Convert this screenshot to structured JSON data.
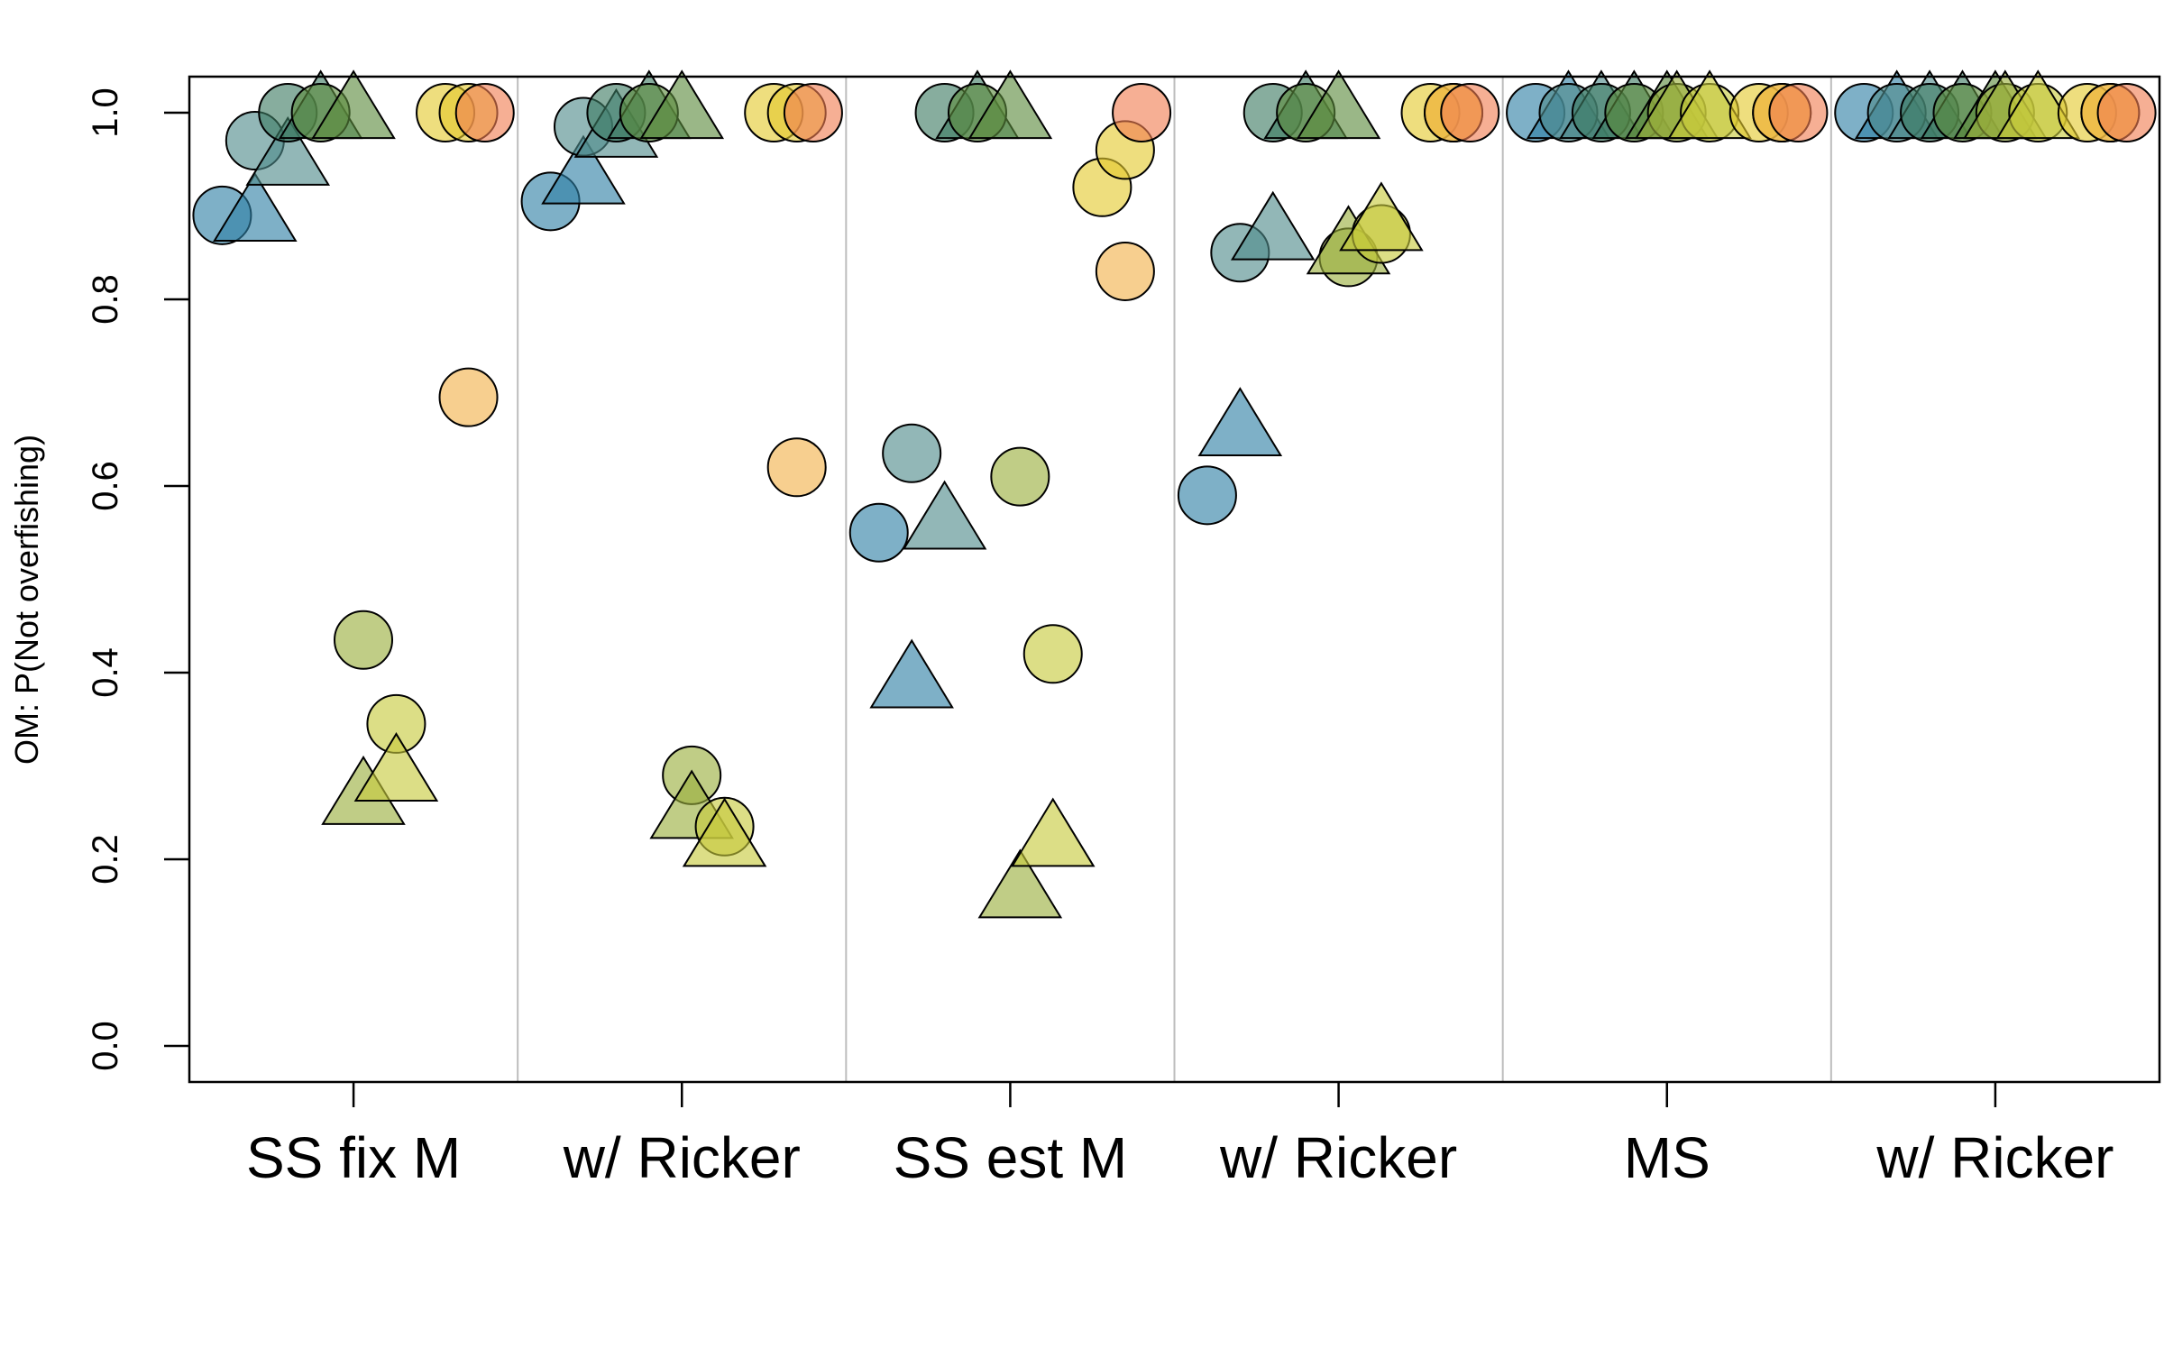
{
  "chart_data": {
    "type": "scatter",
    "title": "",
    "xlabel": "",
    "ylabel": "OM: P(Not overfishing)",
    "ylim": [
      0,
      1
    ],
    "yticks": [
      "0.0",
      "0.2",
      "0.4",
      "0.6",
      "0.8",
      "1.0"
    ],
    "categories": [
      "SS fix M",
      "w/ Ricker",
      "SS est M",
      "w/ Ricker",
      "MS",
      "w/ Ricker"
    ],
    "grid": false,
    "palette": [
      "#2F7FA5",
      "#4F8A8B",
      "#3E7A63",
      "#5C8B3E",
      "#9AAE3C",
      "#C7C93B",
      "#E3C92E",
      "#F2B24A",
      "#F07E52"
    ],
    "point_slots": [
      {
        "offset": -0.4,
        "shape": "circle",
        "color_index": 0
      },
      {
        "offset": -0.3,
        "shape": "triangle",
        "color_index": 0
      },
      {
        "offset": -0.3,
        "shape": "circle",
        "color_index": 1
      },
      {
        "offset": -0.2,
        "shape": "triangle",
        "color_index": 1
      },
      {
        "offset": -0.2,
        "shape": "circle",
        "color_index": 2
      },
      {
        "offset": -0.1,
        "shape": "triangle",
        "color_index": 2
      },
      {
        "offset": -0.1,
        "shape": "circle",
        "color_index": 3
      },
      {
        "offset": 0.0,
        "shape": "triangle",
        "color_index": 3
      },
      {
        "offset": 0.03,
        "shape": "circle",
        "color_index": 4
      },
      {
        "offset": 0.03,
        "shape": "triangle",
        "color_index": 4
      },
      {
        "offset": 0.13,
        "shape": "circle",
        "color_index": 5
      },
      {
        "offset": 0.13,
        "shape": "triangle",
        "color_index": 5
      },
      {
        "offset": 0.28,
        "shape": "circle",
        "color_index": 6
      },
      {
        "offset": 0.35,
        "shape": "circle",
        "color_index": 6
      },
      {
        "offset": 0.35,
        "shape": "circle",
        "color_index": 7
      },
      {
        "offset": 0.4,
        "shape": "circle",
        "color_index": 8
      }
    ],
    "series": [
      {
        "name": "SS fix M",
        "values": [
          0.89,
          0.89,
          0.97,
          0.95,
          1.0,
          1.0,
          1.0,
          1.0,
          0.435,
          0.265,
          0.345,
          0.29,
          1.0,
          1.0,
          0.695,
          1.0
        ]
      },
      {
        "name": "w/ Ricker",
        "values": [
          0.905,
          0.93,
          0.985,
          0.98,
          1.0,
          1.0,
          1.0,
          1.0,
          0.29,
          0.25,
          0.235,
          0.22,
          1.0,
          1.0,
          0.62,
          1.0
        ]
      },
      {
        "name": "SS est M",
        "values": [
          0.55,
          0.39,
          0.635,
          0.56,
          1.0,
          1.0,
          1.0,
          1.0,
          0.61,
          0.165,
          0.42,
          0.22,
          0.92,
          0.96,
          0.83,
          1.0
        ]
      },
      {
        "name": "w/ Ricker",
        "values": [
          0.59,
          0.66,
          0.85,
          0.87,
          1.0,
          1.0,
          1.0,
          1.0,
          0.845,
          0.855,
          0.87,
          0.88,
          1.0,
          1.0,
          1.0,
          1.0
        ]
      },
      {
        "name": "MS",
        "values": [
          1.0,
          1.0,
          1.0,
          1.0,
          1.0,
          1.0,
          1.0,
          1.0,
          1.0,
          1.0,
          1.0,
          1.0,
          1.0,
          1.0,
          1.0,
          1.0
        ]
      },
      {
        "name": "w/ Ricker",
        "values": [
          1.0,
          1.0,
          1.0,
          1.0,
          1.0,
          1.0,
          1.0,
          1.0,
          1.0,
          1.0,
          1.0,
          1.0,
          1.0,
          1.0,
          1.0,
          1.0
        ]
      }
    ]
  }
}
